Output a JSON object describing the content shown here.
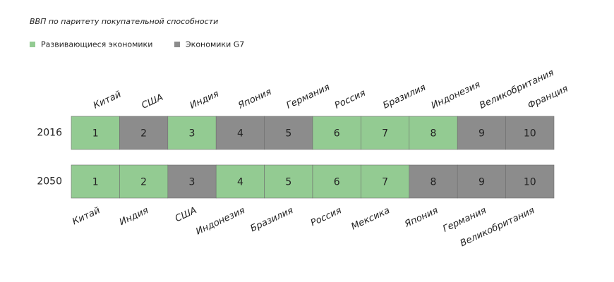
{
  "subtitle": "ВВП по паритету покупательной способности",
  "legend": [
    {
      "label": "Развивающиеся экономики",
      "color": "#93cb92"
    },
    {
      "label": "Экономики G7",
      "color": "#8c8c8c"
    }
  ],
  "rows": [
    {
      "year": "2016",
      "cells": [
        {
          "rank": 1,
          "country": "Китай",
          "group": 0
        },
        {
          "rank": 2,
          "country": "США",
          "group": 1
        },
        {
          "rank": 3,
          "country": "Индия",
          "group": 0
        },
        {
          "rank": 4,
          "country": "Япония",
          "group": 1
        },
        {
          "rank": 5,
          "country": "Германия",
          "group": 1
        },
        {
          "rank": 6,
          "country": "Россия",
          "group": 0
        },
        {
          "rank": 7,
          "country": "Бразилия",
          "group": 0
        },
        {
          "rank": 8,
          "country": "Индонезия",
          "group": 0
        },
        {
          "rank": 9,
          "country": "Великобритания",
          "group": 1
        },
        {
          "rank": 10,
          "country": "Франция",
          "group": 1
        }
      ]
    },
    {
      "year": "2050",
      "cells": [
        {
          "rank": 1,
          "country": "Китай",
          "group": 0
        },
        {
          "rank": 2,
          "country": "Индия",
          "group": 0
        },
        {
          "rank": 3,
          "country": "США",
          "group": 1
        },
        {
          "rank": 4,
          "country": "Индонезия",
          "group": 0
        },
        {
          "rank": 5,
          "country": "Бразилия",
          "group": 0
        },
        {
          "rank": 6,
          "country": "Россия",
          "group": 0
        },
        {
          "rank": 7,
          "country": "Мексика",
          "group": 0
        },
        {
          "rank": 8,
          "country": "Япония",
          "group": 1
        },
        {
          "rank": 9,
          "country": "Германия",
          "group": 1
        },
        {
          "rank": 10,
          "country": "Великобритания",
          "group": 1
        }
      ]
    }
  ]
}
